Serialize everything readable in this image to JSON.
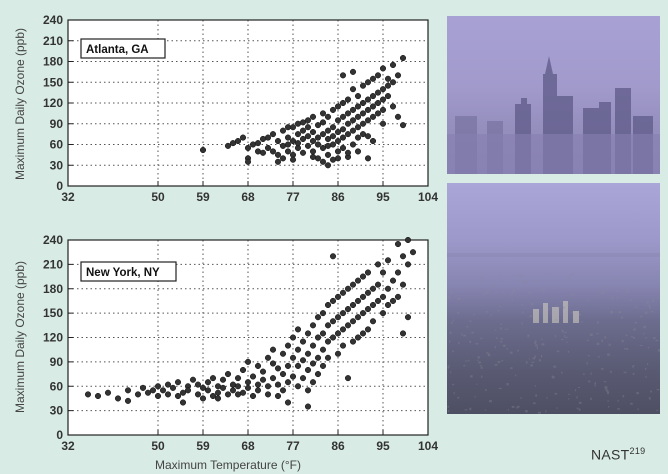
{
  "credit": {
    "text": "NAST",
    "sup": "219"
  },
  "chart_data": [
    {
      "type": "scatter",
      "annotation": "Atlanta, GA",
      "xlabel": "",
      "ylabel": "Maximum Daily Ozone (ppb)",
      "xlim": [
        32,
        104
      ],
      "ylim": [
        0,
        240
      ],
      "xticks": [
        32,
        50,
        59,
        68,
        77,
        86,
        95,
        104
      ],
      "yticks": [
        0,
        30,
        60,
        90,
        120,
        150,
        180,
        210,
        240
      ],
      "grid": true,
      "points": [
        [
          59,
          52
        ],
        [
          64,
          58
        ],
        [
          65,
          62
        ],
        [
          66,
          65
        ],
        [
          67,
          70
        ],
        [
          68,
          55
        ],
        [
          68,
          40
        ],
        [
          68,
          35
        ],
        [
          69,
          60
        ],
        [
          70,
          62
        ],
        [
          70,
          50
        ],
        [
          71,
          48
        ],
        [
          71,
          68
        ],
        [
          72,
          55
        ],
        [
          72,
          70
        ],
        [
          73,
          75
        ],
        [
          73,
          50
        ],
        [
          74,
          65
        ],
        [
          74,
          45
        ],
        [
          74,
          35
        ],
        [
          75,
          58
        ],
        [
          75,
          80
        ],
        [
          75,
          40
        ],
        [
          76,
          70
        ],
        [
          76,
          60
        ],
        [
          76,
          50
        ],
        [
          77,
          85
        ],
        [
          77,
          65
        ],
        [
          77,
          45
        ],
        [
          77,
          38
        ],
        [
          78,
          75
        ],
        [
          78,
          55
        ],
        [
          78,
          90
        ],
        [
          78,
          62
        ],
        [
          79,
          68
        ],
        [
          79,
          80
        ],
        [
          79,
          48
        ],
        [
          80,
          72
        ],
        [
          80,
          95
        ],
        [
          80,
          58
        ],
        [
          80,
          85
        ],
        [
          81,
          78
        ],
        [
          81,
          65
        ],
        [
          81,
          100
        ],
        [
          81,
          50
        ],
        [
          82,
          88
        ],
        [
          82,
          70
        ],
        [
          82,
          60
        ],
        [
          82,
          40
        ],
        [
          83,
          92
        ],
        [
          83,
          75
        ],
        [
          83,
          105
        ],
        [
          83,
          55
        ],
        [
          84,
          80
        ],
        [
          84,
          68
        ],
        [
          84,
          100
        ],
        [
          84,
          30
        ],
        [
          84,
          45
        ],
        [
          85,
          110
        ],
        [
          85,
          85
        ],
        [
          85,
          72
        ],
        [
          85,
          60
        ],
        [
          85,
          38
        ],
        [
          86,
          95
        ],
        [
          86,
          78
        ],
        [
          86,
          115
        ],
        [
          86,
          65
        ],
        [
          86,
          50
        ],
        [
          87,
          100
        ],
        [
          87,
          82
        ],
        [
          87,
          120
        ],
        [
          87,
          70
        ],
        [
          87,
          55
        ],
        [
          87,
          160
        ],
        [
          88,
          105
        ],
        [
          88,
          90
        ],
        [
          88,
          125
        ],
        [
          88,
          75
        ],
        [
          88,
          42
        ],
        [
          89,
          110
        ],
        [
          89,
          95
        ],
        [
          89,
          140
        ],
        [
          89,
          80
        ],
        [
          89,
          60
        ],
        [
          89,
          165
        ],
        [
          90,
          115
        ],
        [
          90,
          100
        ],
        [
          90,
          130
        ],
        [
          90,
          85
        ],
        [
          90,
          70
        ],
        [
          90,
          50
        ],
        [
          91,
          120
        ],
        [
          91,
          105
        ],
        [
          91,
          145
        ],
        [
          91,
          90
        ],
        [
          91,
          75
        ],
        [
          92,
          125
        ],
        [
          92,
          110
        ],
        [
          92,
          150
        ],
        [
          92,
          95
        ],
        [
          92,
          40
        ],
        [
          93,
          130
        ],
        [
          93,
          115
        ],
        [
          93,
          100
        ],
        [
          93,
          155
        ],
        [
          93,
          65
        ],
        [
          94,
          135
        ],
        [
          94,
          120
        ],
        [
          94,
          105
        ],
        [
          94,
          160
        ],
        [
          95,
          140
        ],
        [
          95,
          125
        ],
        [
          95,
          110
        ],
        [
          95,
          170
        ],
        [
          95,
          90
        ],
        [
          96,
          145
        ],
        [
          96,
          130
        ],
        [
          96,
          155
        ],
        [
          97,
          150
        ],
        [
          97,
          175
        ],
        [
          97,
          115
        ],
        [
          98,
          160
        ],
        [
          98,
          100
        ],
        [
          99,
          185
        ],
        [
          99,
          88
        ],
        [
          84,
          58
        ],
        [
          86,
          40
        ],
        [
          83,
          35
        ],
        [
          92,
          72
        ],
        [
          79,
          92
        ],
        [
          76,
          85
        ],
        [
          81,
          42
        ],
        [
          88,
          48
        ]
      ]
    },
    {
      "type": "scatter",
      "annotation": "New York, NY",
      "xlabel": "Maximum Temperature (°F)",
      "ylabel": "Maximum Daily Ozone (ppb)",
      "xlim": [
        32,
        104
      ],
      "ylim": [
        0,
        240
      ],
      "xticks": [
        32,
        50,
        59,
        68,
        77,
        86,
        95,
        104
      ],
      "yticks": [
        0,
        30,
        60,
        90,
        120,
        150,
        180,
        210,
        240
      ],
      "grid": true,
      "points": [
        [
          36,
          50
        ],
        [
          38,
          48
        ],
        [
          40,
          52
        ],
        [
          42,
          45
        ],
        [
          44,
          55
        ],
        [
          46,
          50
        ],
        [
          47,
          58
        ],
        [
          48,
          52
        ],
        [
          49,
          55
        ],
        [
          50,
          48
        ],
        [
          50,
          60
        ],
        [
          51,
          55
        ],
        [
          52,
          50
        ],
        [
          52,
          62
        ],
        [
          53,
          58
        ],
        [
          54,
          48
        ],
        [
          54,
          65
        ],
        [
          55,
          52
        ],
        [
          55,
          40
        ],
        [
          56,
          60
        ],
        [
          56,
          55
        ],
        [
          57,
          68
        ],
        [
          58,
          50
        ],
        [
          58,
          62
        ],
        [
          59,
          58
        ],
        [
          59,
          45
        ],
        [
          60,
          65
        ],
        [
          60,
          55
        ],
        [
          61,
          70
        ],
        [
          61,
          48
        ],
        [
          62,
          60
        ],
        [
          62,
          52
        ],
        [
          63,
          68
        ],
        [
          63,
          58
        ],
        [
          64,
          75
        ],
        [
          64,
          50
        ],
        [
          65,
          62
        ],
        [
          65,
          55
        ],
        [
          66,
          70
        ],
        [
          66,
          60
        ],
        [
          67,
          80
        ],
        [
          67,
          52
        ],
        [
          68,
          65
        ],
        [
          68,
          58
        ],
        [
          68,
          90
        ],
        [
          69,
          72
        ],
        [
          69,
          48
        ],
        [
          70,
          85
        ],
        [
          70,
          62
        ],
        [
          70,
          55
        ],
        [
          71,
          78
        ],
        [
          71,
          68
        ],
        [
          72,
          95
        ],
        [
          72,
          60
        ],
        [
          72,
          50
        ],
        [
          73,
          88
        ],
        [
          73,
          70
        ],
        [
          73,
          105
        ],
        [
          74,
          82
        ],
        [
          74,
          62
        ],
        [
          75,
          100
        ],
        [
          75,
          75
        ],
        [
          75,
          55
        ],
        [
          76,
          110
        ],
        [
          76,
          85
        ],
        [
          76,
          65
        ],
        [
          77,
          95
        ],
        [
          77,
          120
        ],
        [
          77,
          72
        ],
        [
          78,
          105
        ],
        [
          78,
          85
        ],
        [
          78,
          130
        ],
        [
          78,
          60
        ],
        [
          79,
          115
        ],
        [
          79,
          92
        ],
        [
          79,
          70
        ],
        [
          80,
          125
        ],
        [
          80,
          100
        ],
        [
          80,
          80
        ],
        [
          80,
          35
        ],
        [
          81,
          135
        ],
        [
          81,
          110
        ],
        [
          81,
          88
        ],
        [
          81,
          65
        ],
        [
          82,
          145
        ],
        [
          82,
          120
        ],
        [
          82,
          95
        ],
        [
          82,
          75
        ],
        [
          83,
          150
        ],
        [
          83,
          125
        ],
        [
          83,
          105
        ],
        [
          83,
          85
        ],
        [
          84,
          160
        ],
        [
          84,
          135
        ],
        [
          84,
          115
        ],
        [
          84,
          95
        ],
        [
          85,
          165
        ],
        [
          85,
          140
        ],
        [
          85,
          120
        ],
        [
          85,
          220
        ],
        [
          86,
          170
        ],
        [
          86,
          145
        ],
        [
          86,
          125
        ],
        [
          86,
          100
        ],
        [
          87,
          175
        ],
        [
          87,
          150
        ],
        [
          87,
          130
        ],
        [
          87,
          110
        ],
        [
          88,
          180
        ],
        [
          88,
          155
        ],
        [
          88,
          135
        ],
        [
          88,
          70
        ],
        [
          89,
          185
        ],
        [
          89,
          160
        ],
        [
          89,
          140
        ],
        [
          89,
          115
        ],
        [
          90,
          190
        ],
        [
          90,
          165
        ],
        [
          90,
          145
        ],
        [
          90,
          120
        ],
        [
          91,
          195
        ],
        [
          91,
          170
        ],
        [
          91,
          150
        ],
        [
          91,
          125
        ],
        [
          92,
          200
        ],
        [
          92,
          175
        ],
        [
          92,
          155
        ],
        [
          92,
          130
        ],
        [
          93,
          180
        ],
        [
          93,
          160
        ],
        [
          93,
          140
        ],
        [
          94,
          210
        ],
        [
          94,
          185
        ],
        [
          94,
          165
        ],
        [
          95,
          200
        ],
        [
          95,
          170
        ],
        [
          95,
          150
        ],
        [
          96,
          215
        ],
        [
          96,
          180
        ],
        [
          96,
          160
        ],
        [
          97,
          190
        ],
        [
          97,
          165
        ],
        [
          98,
          235
        ],
        [
          98,
          200
        ],
        [
          98,
          170
        ],
        [
          99,
          220
        ],
        [
          99,
          185
        ],
        [
          99,
          125
        ],
        [
          100,
          240
        ],
        [
          100,
          210
        ],
        [
          100,
          145
        ],
        [
          101,
          225
        ],
        [
          44,
          42
        ],
        [
          62,
          45
        ],
        [
          74,
          48
        ],
        [
          80,
          55
        ],
        [
          76,
          40
        ],
        [
          66,
          50
        ]
      ]
    }
  ]
}
